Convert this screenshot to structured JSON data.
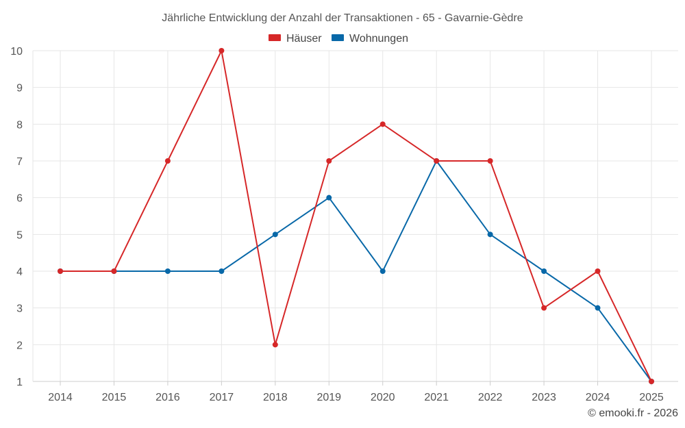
{
  "chart_data": {
    "type": "line",
    "title": "Jährliche Entwicklung der Anzahl der Transaktionen - 65 - Gavarnie-Gèdre",
    "categories": [
      "2014",
      "2015",
      "2016",
      "2017",
      "2018",
      "2019",
      "2020",
      "2021",
      "2022",
      "2023",
      "2024",
      "2025"
    ],
    "series": [
      {
        "name": "Häuser",
        "color": "#d62728",
        "values": [
          4,
          4,
          7,
          10,
          2,
          7,
          8,
          7,
          7,
          3,
          4,
          1
        ]
      },
      {
        "name": "Wohnungen",
        "color": "#0868a8",
        "values": [
          4,
          4,
          4,
          4,
          5,
          6,
          4,
          7,
          5,
          4,
          3,
          1
        ]
      }
    ],
    "y_ticks": [
      1,
      2,
      3,
      4,
      5,
      6,
      7,
      8,
      9,
      10
    ],
    "ylim": [
      1,
      10
    ],
    "grid": true,
    "legend": "top-center",
    "credit": "© emooki.fr - 2026"
  }
}
